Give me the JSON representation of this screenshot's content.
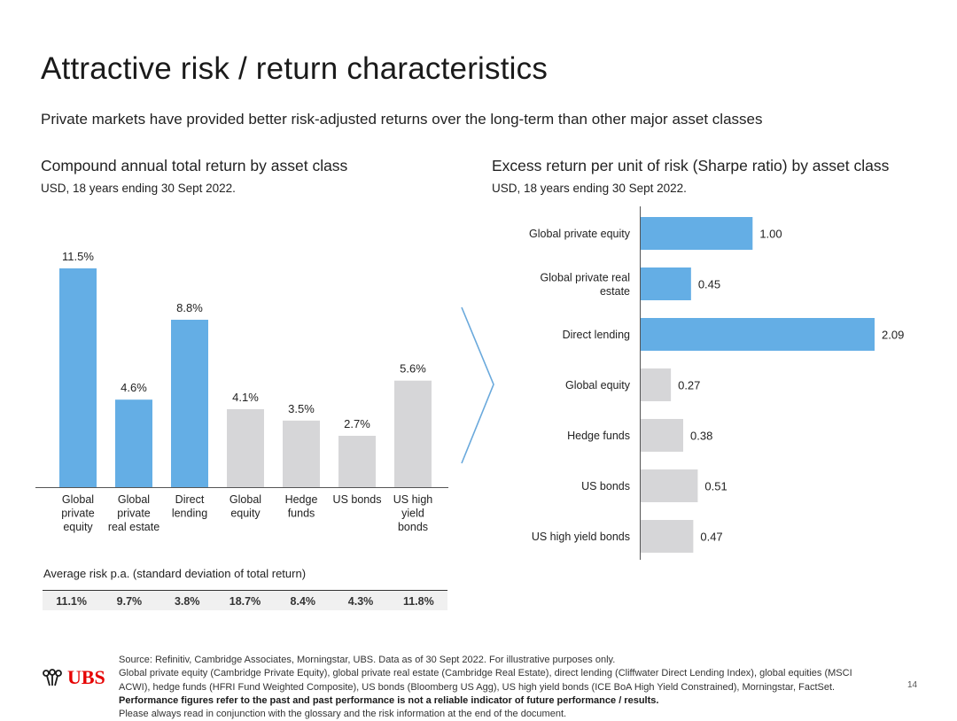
{
  "title": "Attractive risk / return characteristics",
  "subtitle": "Private markets have provided better risk-adjusted returns over the long-term than other major asset classes",
  "left_panel": {
    "title": "Compound annual total return by asset class",
    "subtitle": "USD, 18 years ending 30 Sept 2022."
  },
  "right_panel": {
    "title": "Excess return per unit of risk (Sharpe ratio) by asset class",
    "subtitle": "USD, 18 years ending 30 Sept 2022."
  },
  "risk": {
    "title": "Average risk p.a. (standard deviation of total return)",
    "values": [
      "11.1%",
      "9.7%",
      "3.8%",
      "18.7%",
      "8.4%",
      "4.3%",
      "11.8%"
    ]
  },
  "footer": {
    "line1": "Source: Refinitiv, Cambridge Associates, Morningstar, UBS. Data as of 30 Sept 2022. For illustrative purposes only.",
    "line2": "Global private equity (Cambridge Private Equity), global private real estate (Cambridge Real Estate), direct lending (Cliffwater Direct Lending Index), global equities (MSCI",
    "line3": "ACWI), hedge funds (HFRI Fund Weighted Composite), US bonds (Bloomberg US Agg), US high yield bonds (ICE BoA High Yield Constrained), Morningstar, FactSet.",
    "line4": "Performance figures refer to the past and past performance is not a reliable indicator of future performance / results.",
    "line5": "Please always read in conjunction with the glossary and the risk information at the end of the document."
  },
  "logo_text": "UBS",
  "page_number": "14",
  "colors": {
    "highlight": "#64aee5",
    "other": "#d6d6d8",
    "arrow": "#6aa9dc"
  },
  "chart_data": [
    {
      "type": "bar",
      "title": "Compound annual total return by asset class",
      "subtitle": "USD, 18 years ending 30 Sept 2022.",
      "categories": [
        [
          "Global",
          "private",
          "equity"
        ],
        [
          "Global",
          "private",
          "real estate"
        ],
        [
          "Direct",
          "lending"
        ],
        [
          "Global",
          "equity"
        ],
        [
          "Hedge",
          "funds"
        ],
        [
          "US bonds"
        ],
        [
          "US high",
          "yield",
          "bonds"
        ]
      ],
      "values": [
        11.5,
        4.6,
        8.8,
        4.1,
        3.5,
        2.7,
        5.6
      ],
      "labels": [
        "11.5%",
        "4.6%",
        "8.8%",
        "4.1%",
        "3.5%",
        "2.7%",
        "5.6%"
      ],
      "highlight": [
        true,
        true,
        true,
        false,
        false,
        false,
        false
      ],
      "ylim": [
        0,
        11.5
      ],
      "grid": false
    },
    {
      "type": "bar",
      "orientation": "horizontal",
      "title": "Excess return per unit of risk (Sharpe ratio) by asset class",
      "subtitle": "USD, 18 years ending 30 Sept 2022.",
      "categories": [
        [
          "Global private equity"
        ],
        [
          "Global private real",
          "estate"
        ],
        [
          "Direct lending"
        ],
        [
          "Global equity"
        ],
        [
          "Hedge funds"
        ],
        [
          "US bonds"
        ],
        [
          "US high yield bonds"
        ]
      ],
      "values": [
        1.0,
        0.45,
        2.09,
        0.27,
        0.38,
        0.51,
        0.47
      ],
      "labels": [
        "1.00",
        "0.45",
        "2.09",
        "0.27",
        "0.38",
        "0.51",
        "0.47"
      ],
      "highlight": [
        true,
        true,
        true,
        false,
        false,
        false,
        false
      ],
      "xlim": [
        0,
        2.09
      ],
      "grid": false
    }
  ]
}
